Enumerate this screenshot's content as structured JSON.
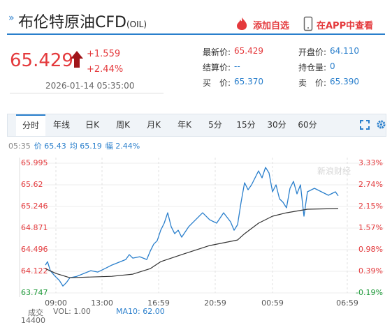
{
  "header": {
    "title": "布伦特原油CFD",
    "code": "(OIL)",
    "add_button": "添加自选",
    "app_button": "在APP中查看"
  },
  "quote": {
    "price": "65.429",
    "change": "+1.559",
    "change_pct": "+2.44%",
    "time": "2026-01-14 05:35:00",
    "fields": [
      [
        "最新价:",
        "65.429"
      ],
      [
        "结算价:",
        "--"
      ],
      [
        "买　价:",
        "65.370"
      ],
      [
        "开盘价:",
        "64.110"
      ],
      [
        "持仓量:",
        "0"
      ],
      [
        "卖　价:",
        "65.390"
      ]
    ]
  },
  "tabs": [
    "分时",
    "年线",
    "日K",
    "周K",
    "月K",
    "年K",
    "5分",
    "15分",
    "30分",
    "60分"
  ],
  "info_line": [
    "05:35",
    "价 65.43",
    "均 65.19",
    "幅 2.44%"
  ],
  "watermark": "新浪财经",
  "volume": {
    "label": "成交",
    "vol": "VOL: 1.00",
    "ma10": "MA10: 62.00",
    "axis_top": "14400"
  },
  "chart_data": {
    "type": "line",
    "xlim": [
      0,
      522
    ],
    "xticks": [
      {
        "value": 52,
        "label": "09:00"
      },
      {
        "value": 118,
        "label": "13:00"
      },
      {
        "value": 199,
        "label": "16:59"
      },
      {
        "value": 280,
        "label": "20:59"
      },
      {
        "value": 362,
        "label": "00:59"
      },
      {
        "value": 469,
        "label": "06:59"
      }
    ],
    "ylim": [
      63.747,
      65.995
    ],
    "yticks": [
      65.995,
      65.62,
      65.246,
      64.871,
      64.496,
      64.122,
      63.747
    ],
    "y2lim": [
      -0.1926,
      3.327
    ],
    "y2ticks": [
      {
        "value": 3.33,
        "label": "3.33%"
      },
      {
        "value": 2.74,
        "label": "2.74%"
      },
      {
        "value": 2.15,
        "label": "2.15%"
      },
      {
        "value": 1.57,
        "label": "1.57%"
      },
      {
        "value": 0.98,
        "label": "0.98%"
      },
      {
        "value": 0.39,
        "label": "0.39%"
      },
      {
        "value": -0.19,
        "label": "-0.19%"
      }
    ],
    "up_color": "#e4393c",
    "down_color": "#1f9a3a",
    "grid": true,
    "series": [
      {
        "color": "#2a7fcc",
        "x": [
          37,
          40,
          44,
          50,
          57,
          62,
          67,
          72,
          82,
          92,
          102,
          112,
          122,
          132,
          142,
          152,
          157,
          162,
          172,
          182,
          187,
          192,
          197,
          202,
          207,
          212,
          217,
          222,
          227,
          232,
          242,
          252,
          262,
          272,
          282,
          292,
          302,
          307,
          312,
          317,
          322,
          327,
          332,
          342,
          347,
          352,
          357,
          362,
          367,
          372,
          377,
          382,
          387,
          392,
          397,
          402,
          407,
          412,
          422,
          432,
          442,
          452,
          456
        ],
        "values": [
          64.229,
          64.289,
          64.132,
          64.047,
          63.963,
          63.866,
          63.926,
          64.011,
          64.035,
          64.084,
          64.132,
          64.108,
          64.168,
          64.229,
          64.277,
          64.326,
          64.41,
          64.35,
          64.374,
          64.326,
          64.471,
          64.592,
          64.652,
          64.834,
          64.955,
          65.136,
          64.894,
          64.773,
          64.834,
          64.713,
          64.894,
          65.015,
          65.136,
          65.015,
          64.955,
          65.136,
          64.979,
          64.834,
          64.93,
          65.318,
          65.656,
          65.535,
          65.62,
          65.862,
          65.741,
          65.922,
          65.826,
          65.499,
          65.62,
          65.378,
          65.318,
          65.221,
          65.56,
          65.68,
          65.463,
          65.62,
          65.076,
          65.499,
          65.56,
          65.499,
          65.439,
          65.499,
          65.429
        ]
      },
      {
        "color": "#333333",
        "x": [
          37,
          52,
          72,
          102,
          132,
          162,
          187,
          202,
          232,
          272,
          312,
          322,
          342,
          362,
          382,
          412,
          456
        ],
        "values": [
          64.168,
          64.084,
          64.011,
          64.023,
          64.035,
          64.072,
          64.168,
          64.289,
          64.41,
          64.568,
          64.664,
          64.773,
          64.955,
          65.076,
          65.136,
          65.197,
          65.209
        ]
      }
    ]
  }
}
